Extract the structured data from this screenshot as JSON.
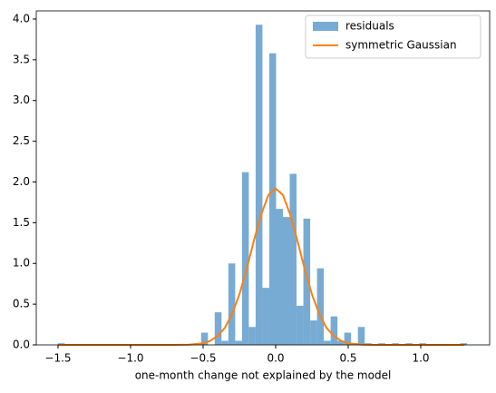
{
  "chart_data": {
    "type": "histogram",
    "xlabel": "one-month change not explained by the model",
    "bins": [
      -1.501,
      -1.454,
      -1.407,
      -1.36,
      -1.313,
      -1.266,
      -1.219,
      -1.172,
      -1.125,
      -1.078,
      -1.031,
      -0.984,
      -0.937,
      -0.89,
      -0.843,
      -0.796,
      -0.749,
      -0.702,
      -0.655,
      -0.608,
      -0.561,
      -0.514,
      -0.467,
      -0.42,
      -0.373,
      -0.326,
      -0.279,
      -0.232,
      -0.185,
      -0.138,
      -0.091,
      -0.044,
      0.003,
      0.05,
      0.097,
      0.144,
      0.191,
      0.238,
      0.285,
      0.332,
      0.379,
      0.426,
      0.473,
      0.52,
      0.567,
      0.614,
      0.661,
      0.708,
      0.755,
      0.802,
      0.849,
      0.896,
      0.943,
      0.99,
      1.037,
      1.084,
      1.131,
      1.178,
      1.225,
      1.272,
      1.319
    ],
    "name": "residuals",
    "color": "#77abd3",
    "values": [
      0.02,
      0,
      0,
      0,
      0,
      0,
      0,
      0,
      0,
      0,
      0,
      0,
      0,
      0,
      0,
      0,
      0,
      0,
      0,
      0,
      0,
      0.15,
      0,
      0.4,
      0.05,
      1.0,
      0.05,
      2.12,
      0.22,
      3.93,
      0.7,
      3.58,
      1.67,
      1.57,
      2.1,
      0.48,
      1.55,
      0.3,
      0.94,
      0.05,
      0.35,
      0.05,
      0.15,
      0.02,
      0.22,
      0.02,
      0,
      0.02,
      0,
      0.02,
      0,
      0.02,
      0,
      0.02,
      0,
      0,
      0,
      0,
      0,
      0.02
    ],
    "overlay": {
      "type": "line",
      "name": "symmetric Gaussian",
      "color": "#ff7f0e",
      "x": [
        -1.5,
        -1.2,
        -0.9,
        -0.7,
        -0.6,
        -0.5,
        -0.45,
        -0.4,
        -0.35,
        -0.3,
        -0.25,
        -0.2,
        -0.15,
        -0.1,
        -0.05,
        0,
        0.05,
        0.1,
        0.15,
        0.2,
        0.25,
        0.3,
        0.35,
        0.4,
        0.45,
        0.5,
        0.6,
        0.7,
        0.9,
        1.2,
        1.3
      ],
      "values": [
        0,
        0,
        0,
        0,
        0.003,
        0.02,
        0.05,
        0.11,
        0.21,
        0.38,
        0.62,
        0.93,
        1.28,
        1.6,
        1.84,
        1.92,
        1.84,
        1.6,
        1.28,
        0.93,
        0.62,
        0.38,
        0.21,
        0.11,
        0.05,
        0.02,
        0.003,
        0,
        0,
        0,
        0
      ]
    },
    "xlim": [
      -1.65,
      1.475
    ],
    "ylim": [
      0,
      4.1
    ],
    "xticks": [
      {
        "value": -1.5,
        "label": "−1.5"
      },
      {
        "value": -1.0,
        "label": "−1.0"
      },
      {
        "value": -0.5,
        "label": "−0.5"
      },
      {
        "value": 0,
        "label": "0.0"
      },
      {
        "value": 0.5,
        "label": "0.5"
      },
      {
        "value": 1.0,
        "label": "1.0"
      }
    ],
    "yticks": [
      {
        "value": 0,
        "label": "0.0"
      },
      {
        "value": 0.5,
        "label": "0.5"
      },
      {
        "value": 1.0,
        "label": "1.0"
      },
      {
        "value": 1.5,
        "label": "1.5"
      },
      {
        "value": 2.0,
        "label": "2.0"
      },
      {
        "value": 2.5,
        "label": "2.5"
      },
      {
        "value": 3.0,
        "label": "3.0"
      },
      {
        "value": 3.5,
        "label": "3.5"
      },
      {
        "value": 4.0,
        "label": "4.0"
      }
    ],
    "legend": "upper right"
  }
}
